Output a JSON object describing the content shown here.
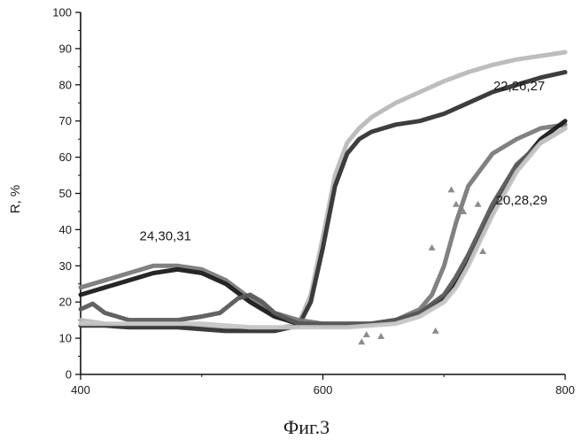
{
  "figure_caption": "Фиг.3",
  "chart_data": {
    "type": "line",
    "title": "",
    "xlabel": "",
    "ylabel": "R, %",
    "xlim": [
      400,
      800
    ],
    "ylim": [
      0,
      100
    ],
    "x_ticks": [
      400,
      600,
      800
    ],
    "y_ticks": [
      0,
      10,
      20,
      30,
      40,
      50,
      60,
      70,
      80,
      90,
      100
    ],
    "grid": false,
    "annotations": [
      {
        "text": "24,30,31",
        "x": 470,
        "y": 37
      },
      {
        "text": "22,26,27",
        "x": 762,
        "y": 78.5
      },
      {
        "text": "20,28,29",
        "x": 764,
        "y": 47
      }
    ],
    "series": [
      {
        "color": "#b9b9b9",
        "x": [
          400,
          420,
          440,
          460,
          480,
          500,
          520,
          540,
          560,
          580,
          590,
          600,
          610,
          620,
          630,
          640,
          650,
          660,
          680,
          700,
          720,
          740,
          760,
          780,
          800
        ],
        "y": [
          15,
          14,
          13.5,
          13.5,
          13.5,
          13,
          12.5,
          12.5,
          12.5,
          14,
          22,
          38,
          55,
          64,
          68,
          71,
          73,
          75,
          78,
          81,
          83.5,
          85.5,
          87,
          88,
          89
        ]
      },
      {
        "color": "#333333",
        "x": [
          400,
          420,
          440,
          460,
          480,
          500,
          520,
          540,
          560,
          580,
          590,
          600,
          610,
          620,
          630,
          640,
          650,
          660,
          680,
          700,
          720,
          740,
          760,
          780,
          800
        ],
        "y": [
          13.5,
          13.5,
          13,
          13,
          13,
          12.5,
          12,
          12,
          12,
          13.5,
          20,
          35,
          52,
          61,
          65,
          67,
          68,
          69,
          70,
          72,
          75,
          78,
          80,
          82,
          83.5
        ]
      },
      {
        "color": "#7a7a7a",
        "x": [
          400,
          420,
          440,
          460,
          480,
          500,
          520,
          540,
          560,
          580,
          600,
          620,
          640,
          660,
          680,
          690,
          700,
          710,
          720,
          740,
          760,
          780,
          800
        ],
        "y": [
          24,
          26,
          28,
          30,
          30,
          29,
          26,
          21,
          17,
          15,
          14,
          14,
          14,
          15,
          18,
          22,
          30,
          42,
          52,
          61,
          65,
          68,
          69
        ]
      },
      {
        "color": "#1a1a1a",
        "x": [
          400,
          420,
          440,
          460,
          480,
          500,
          520,
          540,
          560,
          580,
          600,
          620,
          640,
          660,
          680,
          700,
          710,
          720,
          740,
          760,
          780,
          800
        ],
        "y": [
          22,
          24,
          26,
          28,
          29,
          28,
          25,
          20,
          16,
          14,
          13.5,
          13.5,
          14,
          15,
          17,
          21,
          25,
          31,
          45,
          57,
          65,
          70
        ]
      },
      {
        "color": "#5a5a5a",
        "x": [
          400,
          410,
          420,
          440,
          460,
          480,
          500,
          515,
          530,
          540,
          550,
          560,
          580,
          600,
          620,
          640,
          660,
          680,
          700,
          710,
          720,
          740,
          760,
          780,
          800
        ],
        "y": [
          18,
          19.5,
          17,
          15,
          15,
          15,
          16,
          17,
          21,
          22,
          20,
          17,
          14,
          14,
          14,
          14,
          15,
          17,
          22,
          27,
          33,
          47,
          58,
          64,
          68
        ]
      },
      {
        "color": "#c6c6c6",
        "x": [
          400,
          420,
          440,
          460,
          480,
          500,
          520,
          540,
          560,
          580,
          600,
          620,
          640,
          660,
          680,
          700,
          710,
          720,
          740,
          760,
          780,
          800
        ],
        "y": [
          14,
          14,
          14,
          14,
          14,
          14,
          13.5,
          13,
          13,
          13,
          13,
          13,
          13.5,
          14,
          16,
          20,
          24,
          30,
          44,
          56,
          64,
          68
        ]
      }
    ],
    "scatter_points": {
      "color": "#8c8c8c",
      "x": [
        632,
        636,
        648,
        690,
        693,
        706,
        710,
        716,
        728,
        732
      ],
      "y": [
        9,
        11,
        10.5,
        35,
        12,
        51,
        47,
        45,
        47,
        34
      ]
    }
  }
}
